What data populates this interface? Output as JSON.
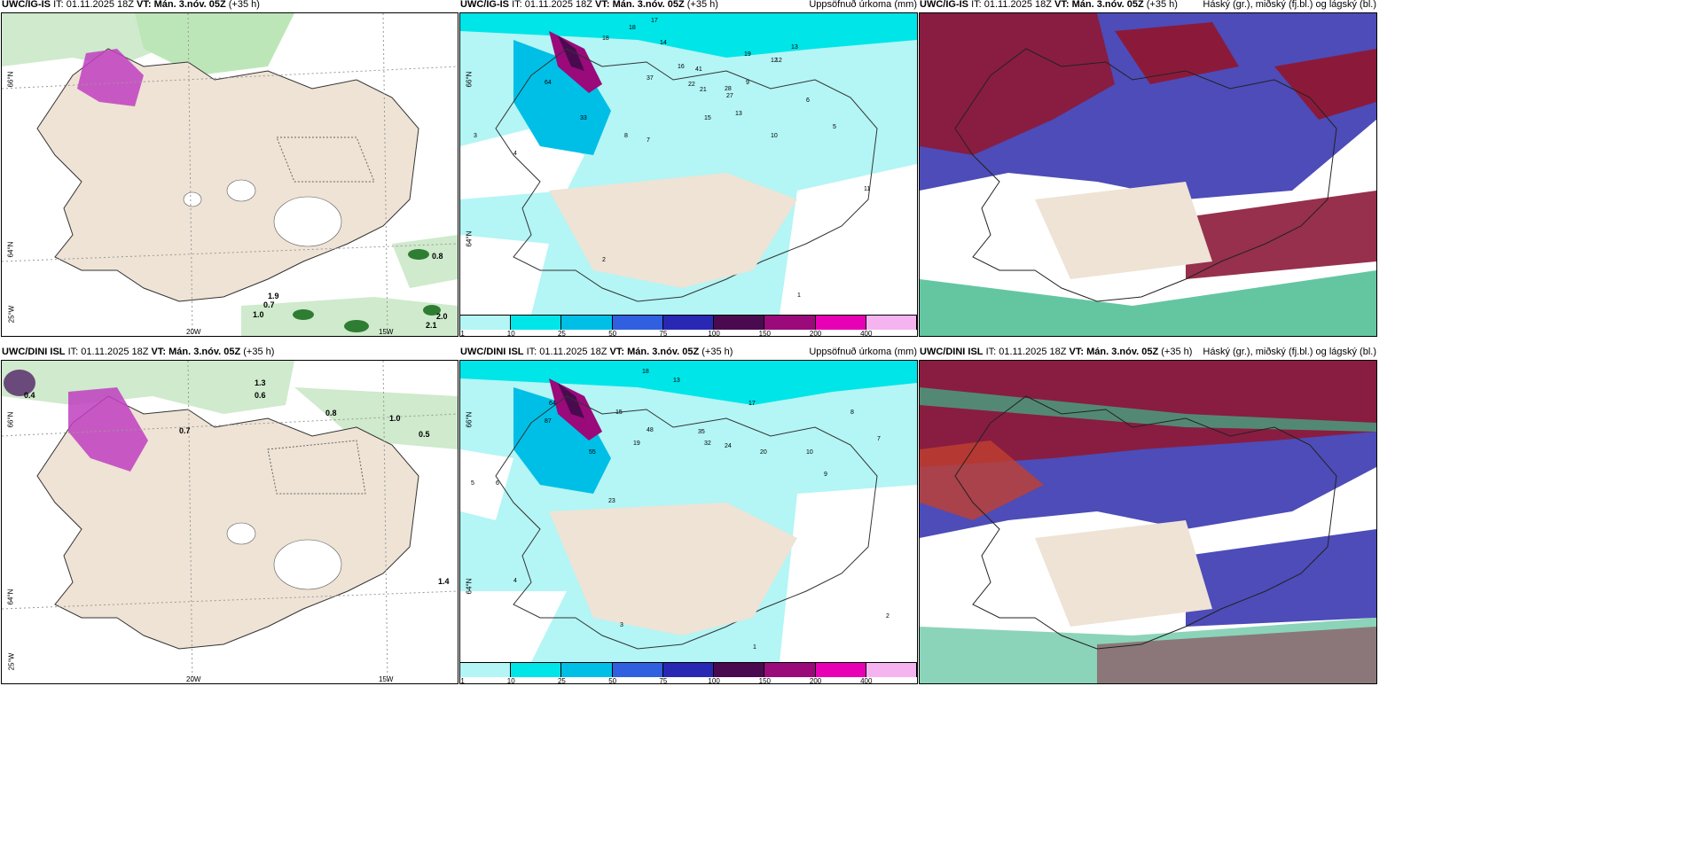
{
  "rows": [
    {
      "model": "UWC/IG-IS",
      "panels": [
        {
          "model": "UWC/IG-IS",
          "it": "IT: 01.11.2025 18Z",
          "vt": "VT: Mán. 3.nóv. 05Z",
          "lead": "(+35 h)",
          "right": ""
        },
        {
          "model": "UWC/IG-IS",
          "it": "IT: 01.11.2025 18Z",
          "vt": "VT: Mán. 3.nóv. 05Z",
          "lead": "(+35 h)",
          "right": "Uppsöfnuð úrkoma (mm)"
        },
        {
          "model": "UWC/IG-IS",
          "it": "IT: 01.11.2025 18Z",
          "vt": "VT: Mán. 3.nóv. 05Z",
          "lead": "(+35 h)",
          "right": "Háský (gr.), miðský (fj.bl.) og lágský (bl.)"
        }
      ]
    },
    {
      "model": "UWC/DINI ISL",
      "panels": [
        {
          "model": "UWC/DINI ISL",
          "it": "IT: 01.11.2025 18Z",
          "vt": "VT: Mán. 3.nóv. 05Z",
          "lead": "(+35 h)",
          "right": ""
        },
        {
          "model": "UWC/DINI ISL",
          "it": "IT: 01.11.2025 18Z",
          "vt": "VT: Mán. 3.nóv. 05Z",
          "lead": "(+35 h)",
          "right": "Uppsöfnuð úrkoma (mm)"
        },
        {
          "model": "UWC/DINI ISL",
          "it": "IT: 01.11.2025 18Z",
          "vt": "VT: Mán. 3.nóv. 05Z",
          "lead": "(+35 h)",
          "right": "Háský (gr.), miðský (fj.bl.) og lágský (bl.)"
        }
      ]
    }
  ],
  "axis_labels": {
    "lat66": "66°N",
    "lat64": "64°N",
    "lon25": "25°W",
    "lon20": "20W",
    "lon15": "15W"
  },
  "legend": {
    "ticks": [
      "1",
      "10",
      "25",
      "50",
      "75",
      "100",
      "150",
      "200",
      "400"
    ],
    "colors": [
      "#b4f5f5",
      "#00e5e8",
      "#00bfe6",
      "#3060e0",
      "#2828b4",
      "#4a0a50",
      "#9a0a7a",
      "#e800b4",
      "#f5b4f0"
    ]
  },
  "precip_numbers_top": [
    "17",
    "18",
    "14",
    "18",
    "19",
    "13",
    "12",
    "64",
    "37",
    "16",
    "41",
    "22",
    "21",
    "28",
    "9",
    "27",
    "13",
    "33",
    "15",
    "10",
    "8",
    "7",
    "6",
    "5",
    "4",
    "3",
    "2",
    "1",
    "11",
    "12"
  ],
  "precip_numbers_bottom": [
    "18",
    "13",
    "15",
    "23",
    "17",
    "64",
    "87",
    "55",
    "19",
    "48",
    "35",
    "32",
    "24",
    "20",
    "10",
    "9",
    "8",
    "7",
    "6",
    "5",
    "4",
    "3",
    "2",
    "1"
  ],
  "precip_values_panel1_top": [
    "0.8",
    "1.0",
    "0.7",
    "1.9",
    "2.0",
    "2.1"
  ],
  "precip_values_panel1_bottom": [
    "0.4",
    "1.3",
    "0.6",
    "0.8",
    "1.0",
    "0.5",
    "0.7",
    "1.4"
  ],
  "colors": {
    "land": "#eee3d5",
    "ocean": "#ffffff",
    "cloud_high": "#8b1a3a",
    "cloud_mid": "#4d4cb8",
    "cloud_low": "#3db88a"
  }
}
